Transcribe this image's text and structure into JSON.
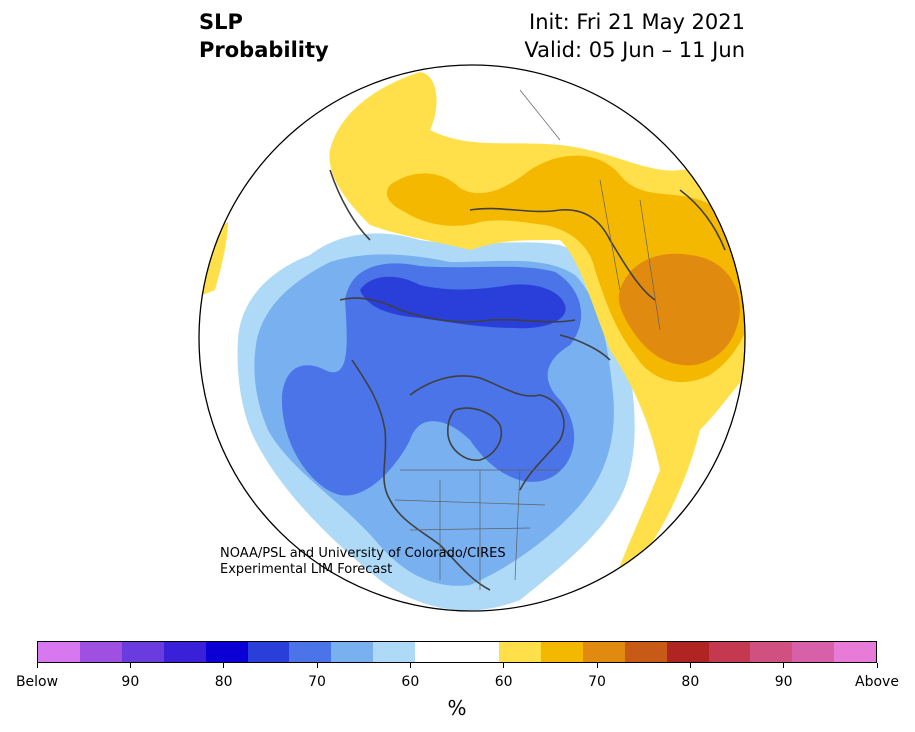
{
  "header": {
    "variable": "SLP",
    "product": "Probability",
    "init": "Init: Fri 21 May 2021",
    "valid": "Valid: 05 Jun – 11 Jun"
  },
  "credit": {
    "line1": "NOAA/PSL and University of Colorado/CIRES",
    "line2": "Experimental LIM Forecast"
  },
  "map": {
    "projection": "north-polar-stereographic",
    "colors": {
      "below_90_plus": "#5b88e6",
      "below_70": "#2a3fd9",
      "below_65": "#4a74e8",
      "below_60": "#78b0f0",
      "below_55": "#aedaf8",
      "neutral": "#ffffff",
      "above_55": "#ffe04a",
      "above_60": "#f5b800",
      "above_65": "#e08a10",
      "coastline": "#404040"
    }
  },
  "colorbar": {
    "colors": [
      "#d878f0",
      "#a050e0",
      "#6a3ce0",
      "#3a20d8",
      "#0a00d6",
      "#2a3fd9",
      "#4a74e8",
      "#78b0f0",
      "#aedaf8",
      "#ffffff",
      "#ffffff",
      "#ffe04a",
      "#f5b800",
      "#e08a10",
      "#c85a18",
      "#b02424",
      "#c43850",
      "#d05080",
      "#d860a8",
      "#e87ad8"
    ],
    "labels": [
      "Below",
      "90",
      "80",
      "70",
      "60",
      "60",
      "70",
      "80",
      "90",
      "Above"
    ],
    "unit": "%"
  }
}
